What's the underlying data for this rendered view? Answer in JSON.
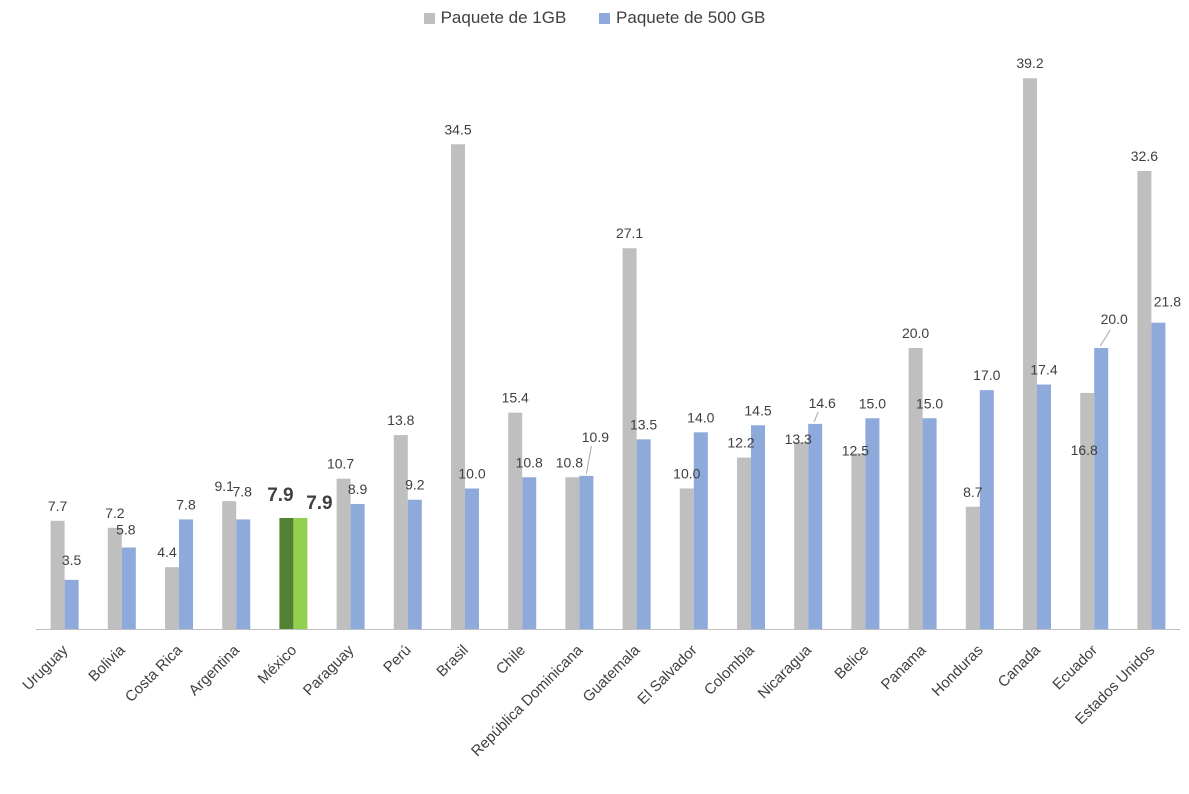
{
  "legend": {
    "series1_label": "Paquete de 1GB",
    "series2_label": "Paquete de 500 GB"
  },
  "colors": {
    "series1": "#bfbfbf",
    "series2": "#8eaadb",
    "highlight1": "#548235",
    "highlight2": "#92d050",
    "axis": "#bfbfbf",
    "label": "#404040"
  },
  "chart_data": {
    "type": "bar",
    "categories": [
      "Uruguay",
      "Bolivia",
      "Costa Rica",
      "Argentina",
      "México",
      "Paraguay",
      "Perú",
      "Brasil",
      "Chile",
      "República Dominicana",
      "Guatemala",
      "El Salvador",
      "Colombia",
      "Nicaragua",
      "Belice",
      "Panama",
      "Honduras",
      "Canada",
      "Ecuador",
      "Estados Unidos"
    ],
    "series": [
      {
        "name": "Paquete de 1GB",
        "values": [
          7.7,
          7.2,
          4.4,
          9.1,
          7.9,
          10.7,
          13.8,
          34.5,
          15.4,
          10.8,
          27.1,
          10.0,
          12.2,
          13.3,
          12.5,
          20.0,
          8.7,
          39.2,
          16.8,
          32.6
        ]
      },
      {
        "name": "Paquete de 500 GB",
        "values": [
          3.5,
          5.8,
          7.8,
          7.8,
          7.9,
          8.9,
          9.2,
          10.0,
          10.8,
          10.9,
          13.5,
          14.0,
          14.5,
          14.6,
          15.0,
          15.0,
          17.0,
          17.4,
          20.0,
          21.8
        ]
      }
    ],
    "highlight_category": "México",
    "ylim": [
      0,
      40
    ],
    "grid": false,
    "legend_position": "top"
  }
}
